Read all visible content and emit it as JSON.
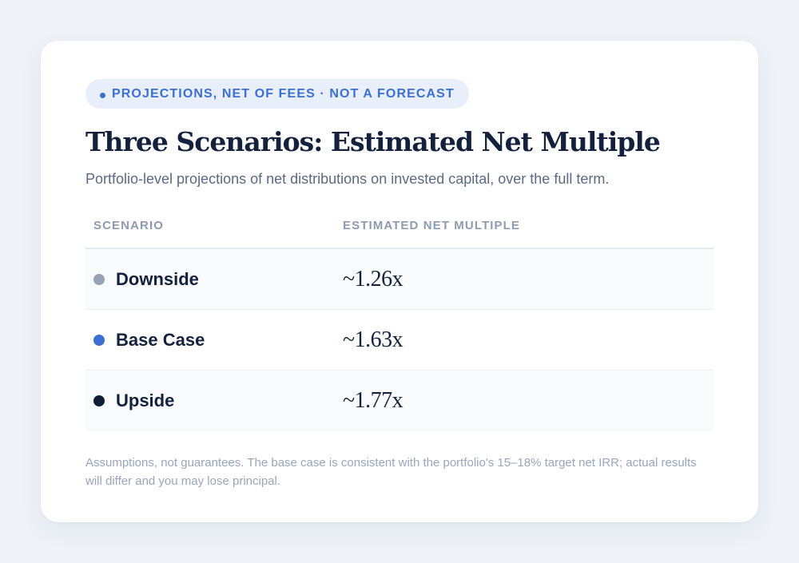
{
  "badge": {
    "label": "PROJECTIONS, NET OF FEES · NOT A FORECAST",
    "color": "#3b6fd1"
  },
  "title": "Three Scenarios: Estimated Net Multiple",
  "subtitle": "Portfolio-level projections of net distributions on invested capital, over the full term.",
  "table": {
    "headers": {
      "scenario": "SCENARIO",
      "multiple": "ESTIMATED NET MULTIPLE"
    },
    "rows": [
      {
        "scenario": "Downside",
        "multiple": "~1.26x",
        "dot_color": "#98a2b5"
      },
      {
        "scenario": "Base Case",
        "multiple": "~1.63x",
        "dot_color": "#3b6fd1"
      },
      {
        "scenario": "Upside",
        "multiple": "~1.77x",
        "dot_color": "#121d38"
      }
    ]
  },
  "footnote": "Assumptions, not guarantees. The base case is consistent with the portfolio's 15–18% target net IRR; actual results will differ and you may lose principal."
}
